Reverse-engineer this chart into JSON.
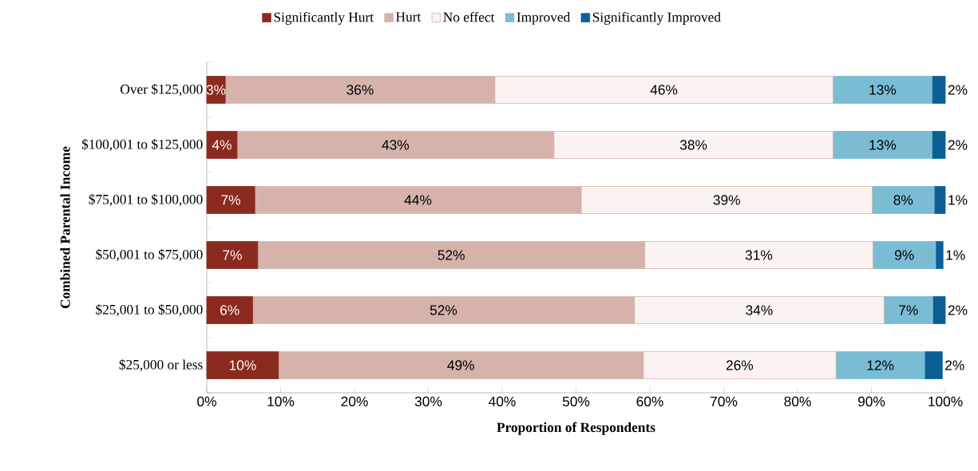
{
  "chart_data": {
    "type": "bar",
    "orientation": "horizontal",
    "stacked": true,
    "categories": [
      "Over $125,000",
      "$100,001 to $125,000",
      "$75,001 to $100,000",
      "$50,001 to $75,000",
      "$25,001 to $50,000",
      "$25,000 or less"
    ],
    "series": [
      {
        "name": "Significantly Hurt",
        "color": "#8b2a1e",
        "values": [
          2.5,
          4.1,
          6.5,
          6.9,
          6.2,
          9.7
        ],
        "value_labels": [
          "3%",
          "4%",
          "7%",
          "7%",
          "6%",
          "10%"
        ]
      },
      {
        "name": "Hurt",
        "color": "#d5b3ab",
        "values": [
          36.5,
          42.9,
          44.2,
          52.4,
          51.7,
          49.4
        ],
        "value_labels": [
          "36%",
          "43%",
          "44%",
          "52%",
          "52%",
          "49%"
        ]
      },
      {
        "name": "No effect",
        "color": "#faf3f2",
        "values": [
          45.8,
          37.8,
          39.4,
          30.9,
          33.8,
          26.1
        ],
        "value_labels": [
          "46%",
          "38%",
          "39%",
          "31%",
          "34%",
          "26%"
        ]
      },
      {
        "name": "Improved",
        "color": "#7bbcd5",
        "values": [
          13.4,
          13.4,
          8.4,
          8.5,
          6.6,
          12.0
        ],
        "value_labels": [
          "13%",
          "13%",
          "8%",
          "9%",
          "7%",
          "12%"
        ]
      },
      {
        "name": "Significantly Improved",
        "color": "#0b5f94",
        "values": [
          1.8,
          1.8,
          1.5,
          1.0,
          1.7,
          2.4
        ],
        "value_labels": [
          "2%",
          "2%",
          "1%",
          "1%",
          "2%",
          "2%"
        ]
      }
    ],
    "xlabel": "Proportion of Respondents",
    "ylabel": "Combined Parental Income",
    "xlim": [
      0,
      100
    ],
    "xticks": [
      {
        "value": 0,
        "label": "0%"
      },
      {
        "value": 10,
        "label": "10%"
      },
      {
        "value": 20,
        "label": "20%"
      },
      {
        "value": 30,
        "label": "30%"
      },
      {
        "value": 40,
        "label": "40%"
      },
      {
        "value": 50,
        "label": "50%"
      },
      {
        "value": 60,
        "label": "60%"
      },
      {
        "value": 70,
        "label": "70%"
      },
      {
        "value": 80,
        "label": "80%"
      },
      {
        "value": 90,
        "label": "90%"
      },
      {
        "value": 100,
        "label": "100%"
      }
    ],
    "legend": "top",
    "grid": false
  }
}
